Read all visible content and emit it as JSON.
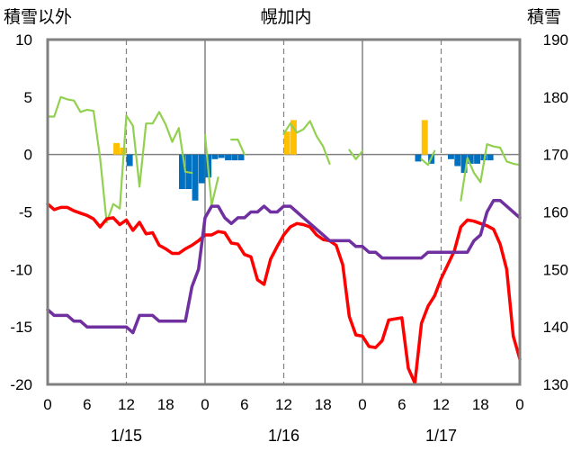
{
  "chart_data": {
    "type": "combo",
    "title": "幌加内",
    "left_axis_label": "積雪以外",
    "right_axis_label": "積雪",
    "left_ylim": [
      -20,
      10
    ],
    "left_ticks": [
      "10",
      "5",
      "0",
      "-5",
      "-10",
      "-15",
      "-20"
    ],
    "right_ylim": [
      130,
      190
    ],
    "right_ticks": [
      "190",
      "180",
      "170",
      "160",
      "150",
      "140",
      "130"
    ],
    "x_hour_labels": [
      "0",
      "6",
      "12",
      "18",
      "0",
      "6",
      "12",
      "18",
      "0",
      "6",
      "12",
      "18",
      "0"
    ],
    "date_labels": [
      "1/15",
      "1/16",
      "1/17"
    ],
    "xlim_hours": [
      0,
      72
    ],
    "colors": {
      "temperature": "#ff0000",
      "snow_depth": "#7030a0",
      "wind": "#92d050",
      "precip_positive": "#ffc000",
      "precip_negative": "#0070c0",
      "frame": "#808080",
      "grid": "#808080"
    },
    "series": [
      {
        "name": "temperature",
        "axis": "left",
        "x": [
          0,
          1,
          2,
          3,
          4,
          5,
          6,
          7,
          8,
          9,
          10,
          11,
          12,
          13,
          14,
          15,
          16,
          17,
          18,
          19,
          20,
          21,
          22,
          23,
          24,
          25,
          26,
          27,
          28,
          29,
          30,
          31,
          32,
          33,
          34,
          35,
          36,
          37,
          38,
          39,
          40,
          41,
          42,
          43,
          44,
          45,
          46,
          47,
          48,
          49,
          50,
          51,
          52,
          53,
          54,
          55,
          56,
          57,
          58,
          59,
          60,
          61,
          62,
          63,
          64,
          65,
          66,
          67,
          68,
          69,
          70,
          71
        ],
        "values": [
          -4.3,
          -4.8,
          -4.6,
          -4.6,
          -4.9,
          -5.1,
          -5.3,
          -5.6,
          -6.3,
          -5.6,
          -5.5,
          -6.1,
          -5.7,
          -6.6,
          -5.9,
          -6.9,
          -6.8,
          -7.9,
          -8.2,
          -8.6,
          -8.6,
          -8.2,
          -7.9,
          -7.5,
          -7.0,
          -7.0,
          -6.7,
          -6.8,
          -7.7,
          -7.8,
          -8.7,
          -8.9,
          -10.9,
          -11.3,
          -9.1,
          -8.0,
          -7.0,
          -6.3,
          -6.0,
          -6.1,
          -6.3,
          -7.0,
          -7.4,
          -7.5,
          -7.9,
          -9.6,
          -14.1,
          -15.7,
          -15.8,
          -16.7,
          -16.8,
          -16.2,
          -14.4,
          -14.3,
          -14.2,
          -18.6,
          -19.9,
          -14.7,
          -13.2,
          -12.3,
          -10.8,
          -9.6,
          -8.4,
          -6.3,
          -5.7,
          -5.8,
          -6.0,
          -6.2,
          -6.5,
          -7.8,
          -10.0,
          -15.8
        ]
      },
      {
        "name": "temperature_tail",
        "axis": "left",
        "x": [
          71,
          72
        ],
        "values": [
          -15.8,
          -17.8
        ]
      },
      {
        "name": "snow_depth",
        "axis": "right",
        "x": [
          0,
          1,
          2,
          3,
          4,
          5,
          6,
          7,
          8,
          9,
          10,
          11,
          12,
          13,
          14,
          15,
          16,
          17,
          18,
          19,
          20,
          21,
          22,
          23,
          24,
          25,
          26,
          27,
          28,
          29,
          30,
          31,
          32,
          33,
          34,
          35,
          36,
          37,
          38,
          39,
          40,
          41,
          42,
          43,
          44,
          45,
          46,
          47,
          48,
          49,
          50,
          51,
          52,
          53,
          54,
          55,
          56,
          57,
          58,
          59,
          60,
          61,
          62,
          63,
          64,
          65,
          66,
          67,
          68,
          69,
          70,
          71,
          72
        ],
        "values": [
          143,
          142,
          142,
          142,
          141,
          141,
          140,
          140,
          140,
          140,
          140,
          140,
          140,
          139,
          142,
          142,
          142,
          141,
          141,
          141,
          141,
          141,
          147,
          150,
          159,
          161,
          161,
          159,
          158,
          159,
          159,
          160,
          160,
          161,
          160,
          160,
          161,
          161,
          160,
          159,
          158,
          157,
          156,
          155,
          155,
          155,
          155,
          154,
          154,
          153,
          153,
          152,
          152,
          152,
          152,
          152,
          152,
          152,
          153,
          153,
          153,
          153,
          153,
          153,
          153,
          155,
          156,
          160,
          162,
          162,
          161,
          160,
          159
        ]
      },
      {
        "name": "wind",
        "axis": "left",
        "x": [
          0,
          1,
          2,
          3,
          4,
          5,
          6,
          7,
          8,
          9,
          10,
          11,
          12,
          13,
          14,
          15,
          16,
          17,
          18,
          19,
          20,
          21,
          22
        ],
        "values": [
          3.3,
          3.3,
          5.0,
          4.8,
          4.7,
          3.7,
          3.9,
          3.8,
          -0.3,
          -5.9,
          -4.3,
          -4.7,
          3.4,
          2.5,
          -2.8,
          2.7,
          2.7,
          3.7,
          2.6,
          1.1,
          2.3,
          -1.5,
          -1.6
        ]
      },
      {
        "name": "wind_b",
        "axis": "left",
        "x": [
          24,
          25
        ],
        "values": [
          1.7,
          -4.4
        ]
      },
      {
        "name": "wind_c",
        "axis": "left",
        "x": [
          25,
          26
        ],
        "values": [
          -4.4,
          -2.0
        ]
      },
      {
        "name": "wind_d",
        "axis": "left",
        "x": [
          28,
          29,
          30
        ],
        "values": [
          1.3,
          1.3,
          0.0
        ]
      },
      {
        "name": "wind_e",
        "axis": "left",
        "x": [
          36,
          37,
          38,
          39,
          40,
          41,
          42,
          43
        ],
        "values": [
          1.8,
          2.7,
          1.9,
          2.2,
          2.9,
          1.6,
          0.7,
          -0.8
        ]
      },
      {
        "name": "wind_f",
        "axis": "left",
        "x": [
          46,
          47,
          48
        ],
        "values": [
          0.4,
          -0.4,
          0.3
        ]
      },
      {
        "name": "wind_g",
        "axis": "left",
        "x": [
          57,
          58,
          59
        ],
        "values": [
          -0.4,
          -0.9,
          0.3
        ]
      },
      {
        "name": "wind_h",
        "axis": "left",
        "x": [
          63,
          64,
          65,
          66,
          67,
          68,
          69,
          70,
          71,
          72
        ],
        "values": [
          -4.0,
          -0.3,
          -1.6,
          -2.4,
          0.9,
          0.7,
          0.6,
          -0.6,
          -0.8,
          -0.9
        ]
      },
      {
        "name": "precipitation",
        "axis": "left",
        "type": "bar",
        "x": [
          10.5,
          11.5,
          12.5,
          20.5,
          21.5,
          22.5,
          23.5,
          24.5,
          25.5,
          26.5,
          27.5,
          28.5,
          29.5,
          36.5,
          37.5,
          56.5,
          57.5,
          58.5,
          59.5,
          61.5,
          62.5,
          63.5,
          64.5,
          65.5,
          66.5,
          67.5
        ],
        "values": [
          1.0,
          0.6,
          -1.0,
          -3.0,
          -3.0,
          -4.0,
          -2.5,
          -2.0,
          -0.4,
          -0.3,
          -0.5,
          -0.5,
          -0.5,
          2.0,
          3.0,
          -0.6,
          3.0,
          -0.8,
          0.0,
          -0.4,
          -1.0,
          -1.6,
          -0.8,
          -0.8,
          -0.5,
          -0.5
        ]
      }
    ]
  }
}
